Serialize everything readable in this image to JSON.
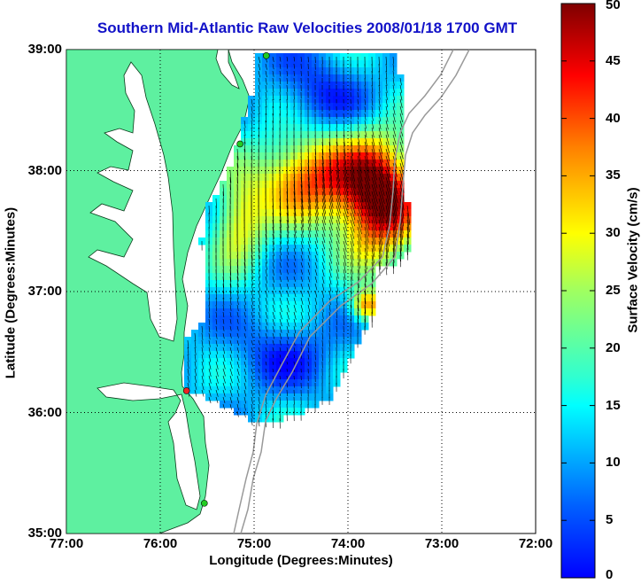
{
  "title": "Southern Mid-Atlantic Raw Velocities 2008/01/18 1700 GMT",
  "x_axis": {
    "label": "Longitude (Degrees:Minutes)",
    "ticks": [
      "77:00",
      "76:00",
      "75:00",
      "74:00",
      "73:00",
      "72:00"
    ]
  },
  "y_axis": {
    "label": "Latitude (Degrees:Minutes)",
    "ticks": [
      "39:00",
      "38:00",
      "37:00",
      "36:00",
      "35:00"
    ]
  },
  "colorbar": {
    "label": "Surface Velocity (cm/s)",
    "min": 0,
    "max": 50,
    "ticks": [
      "50",
      "45",
      "40",
      "35",
      "30",
      "25",
      "20",
      "15",
      "10",
      "5",
      "0"
    ],
    "colormap": "jet"
  },
  "map": {
    "lon_range": [
      -77,
      -72
    ],
    "lat_range": [
      35,
      39
    ],
    "land_color": "#5ef0a0",
    "grid": "dotted",
    "stations": [
      {
        "lon": -74.87,
        "lat": 38.95,
        "color": "#22cc22"
      },
      {
        "lon": -75.15,
        "lat": 38.22,
        "color": "#22cc22"
      },
      {
        "lon": -75.72,
        "lat": 36.18,
        "color": "#ee2222"
      },
      {
        "lon": -75.53,
        "lat": 35.25,
        "color": "#22cc22"
      }
    ]
  }
}
